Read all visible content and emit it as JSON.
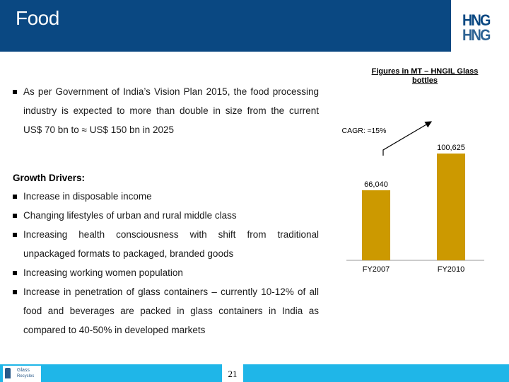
{
  "header": {
    "title": "Food",
    "logo_top": "HNG",
    "logo_bottom": "HNG"
  },
  "intro": {
    "line1": "As per Government of India’s Vision Plan 2015, the food processing",
    "line2": "industry is expected to more than double in size from the current",
    "line3": "US$ 70 bn to ≈ US$ 150 bn in 2025"
  },
  "drivers": {
    "heading": "Growth Drivers:",
    "item1": "Increase in disposable income",
    "item2": "Changing lifestyles of urban and rural middle class",
    "item3_line1": "Increasing health consciousness with shift from traditional",
    "item3_line2": "unpackaged formats to packaged, branded goods",
    "item4": "Increasing working women population",
    "item5_line1": "Increase in penetration of glass containers – currently 10-12% of all",
    "item5_line2": "food and beverages are packed in glass containers in India as",
    "item5_line3": "compared to 40-50% in developed markets"
  },
  "chart_data": {
    "type": "bar",
    "title": "Figures in MT – HNGIL Glass bottles",
    "categories": [
      "FY2007",
      "FY2010"
    ],
    "values": [
      66040,
      100625
    ],
    "value_labels": [
      "66,040",
      "100,625"
    ],
    "annotation": "CAGR: ≈15%",
    "bar_color": "#cc9900",
    "ylim": [
      0,
      110000
    ]
  },
  "footer": {
    "page_number": "21",
    "logo_text1": "Glass",
    "logo_text2": "Recycles"
  }
}
